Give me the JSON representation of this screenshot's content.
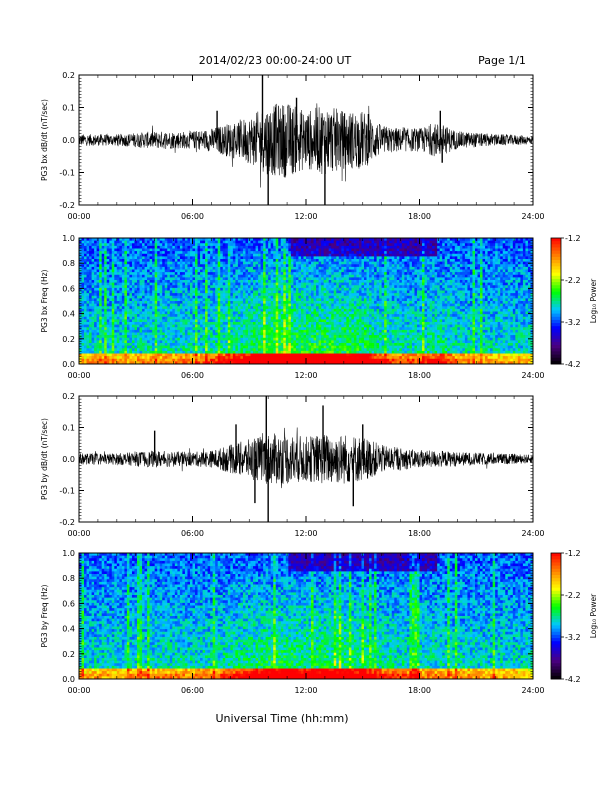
{
  "header": {
    "title": "2014/02/23  00:00-24:00 UT",
    "page": "Page 1/1"
  },
  "xlabel": "Universal Time (hh:mm)",
  "colorbar": {
    "label": "Log₁₀ Power",
    "ticks": [
      "-1.2",
      "-2.2",
      "-3.2",
      "-4.2"
    ],
    "range": [
      -4.2,
      -1.2
    ],
    "colormap": [
      "#000000",
      "#4b0082",
      "#0000ff",
      "#00c8ff",
      "#00ff00",
      "#ffff00",
      "#ff8000",
      "#ff0000"
    ]
  },
  "chart_data": [
    {
      "type": "line",
      "ylabel": "PG3 bx dB/dt (nT/sec)",
      "xlim": [
        0,
        24
      ],
      "ylim": [
        -0.2,
        0.2
      ],
      "yticks": [
        "0.2",
        "0.1",
        "0.0",
        "-0.1",
        "-0.2"
      ],
      "xticks": [
        "00:00",
        "06:00",
        "12:00",
        "18:00",
        "24:00"
      ],
      "envelope": {
        "hour": [
          0,
          2,
          4,
          6,
          7,
          8,
          9,
          10,
          11,
          12,
          13,
          14,
          15,
          16,
          17,
          18,
          19,
          20,
          22,
          24
        ],
        "amplitude": [
          0.02,
          0.02,
          0.03,
          0.03,
          0.04,
          0.06,
          0.08,
          0.12,
          0.13,
          0.1,
          0.12,
          0.1,
          0.1,
          0.05,
          0.04,
          0.04,
          0.06,
          0.03,
          0.02,
          0.015
        ]
      },
      "spikes": [
        {
          "hour": 7.3,
          "value": 0.09
        },
        {
          "hour": 9.7,
          "value": 0.2
        },
        {
          "hour": 10.0,
          "value": -0.2
        },
        {
          "hour": 11.5,
          "value": 0.13
        },
        {
          "hour": 13.0,
          "value": -0.2
        },
        {
          "hour": 15.3,
          "value": 0.08
        },
        {
          "hour": 19.1,
          "value": 0.09
        },
        {
          "hour": 19.2,
          "value": -0.07
        }
      ]
    },
    {
      "type": "heatmap",
      "ylabel": "PG3 bx Freq (Hz)",
      "xlim": [
        0,
        24
      ],
      "ylim": [
        0,
        1
      ],
      "yticks": [
        "1.0",
        "0.8",
        "0.6",
        "0.4",
        "0.2",
        "0.0"
      ],
      "xticks": [
        "00:00",
        "06:00",
        "12:00",
        "18:00",
        "24:00"
      ],
      "zlabel": "Log₁₀ Power",
      "zlim": [
        -4.2,
        -1.2
      ]
    },
    {
      "type": "line",
      "ylabel": "PG3 by dB/dt (nT/sec)",
      "xlim": [
        0,
        24
      ],
      "ylim": [
        -0.2,
        0.2
      ],
      "yticks": [
        "0.2",
        "0.1",
        "0.0",
        "-0.1",
        "-0.2"
      ],
      "xticks": [
        "00:00",
        "06:00",
        "12:00",
        "18:00",
        "24:00"
      ],
      "envelope": {
        "hour": [
          0,
          2,
          4,
          6,
          7,
          8,
          9,
          10,
          11,
          12,
          13,
          14,
          15,
          16,
          17,
          18,
          19,
          20,
          22,
          24
        ],
        "amplitude": [
          0.02,
          0.02,
          0.03,
          0.025,
          0.03,
          0.05,
          0.07,
          0.09,
          0.09,
          0.08,
          0.09,
          0.09,
          0.08,
          0.05,
          0.04,
          0.03,
          0.03,
          0.025,
          0.02,
          0.015
        ]
      },
      "spikes": [
        {
          "hour": 4.0,
          "value": 0.09
        },
        {
          "hour": 8.3,
          "value": 0.11
        },
        {
          "hour": 9.3,
          "value": -0.14
        },
        {
          "hour": 9.9,
          "value": 0.2
        },
        {
          "hour": 10.0,
          "value": -0.2
        },
        {
          "hour": 12.9,
          "value": 0.17
        },
        {
          "hour": 14.5,
          "value": -0.15
        },
        {
          "hour": 15.0,
          "value": 0.11
        }
      ]
    },
    {
      "type": "heatmap",
      "ylabel": "PG3 by Freq (Hz)",
      "xlim": [
        0,
        24
      ],
      "ylim": [
        0,
        1
      ],
      "yticks": [
        "1.0",
        "0.8",
        "0.6",
        "0.4",
        "0.2",
        "0.0"
      ],
      "xticks": [
        "00:00",
        "06:00",
        "12:00",
        "18:00",
        "24:00"
      ],
      "zlabel": "Log₁₀ Power",
      "zlim": [
        -4.2,
        -1.2
      ]
    }
  ]
}
